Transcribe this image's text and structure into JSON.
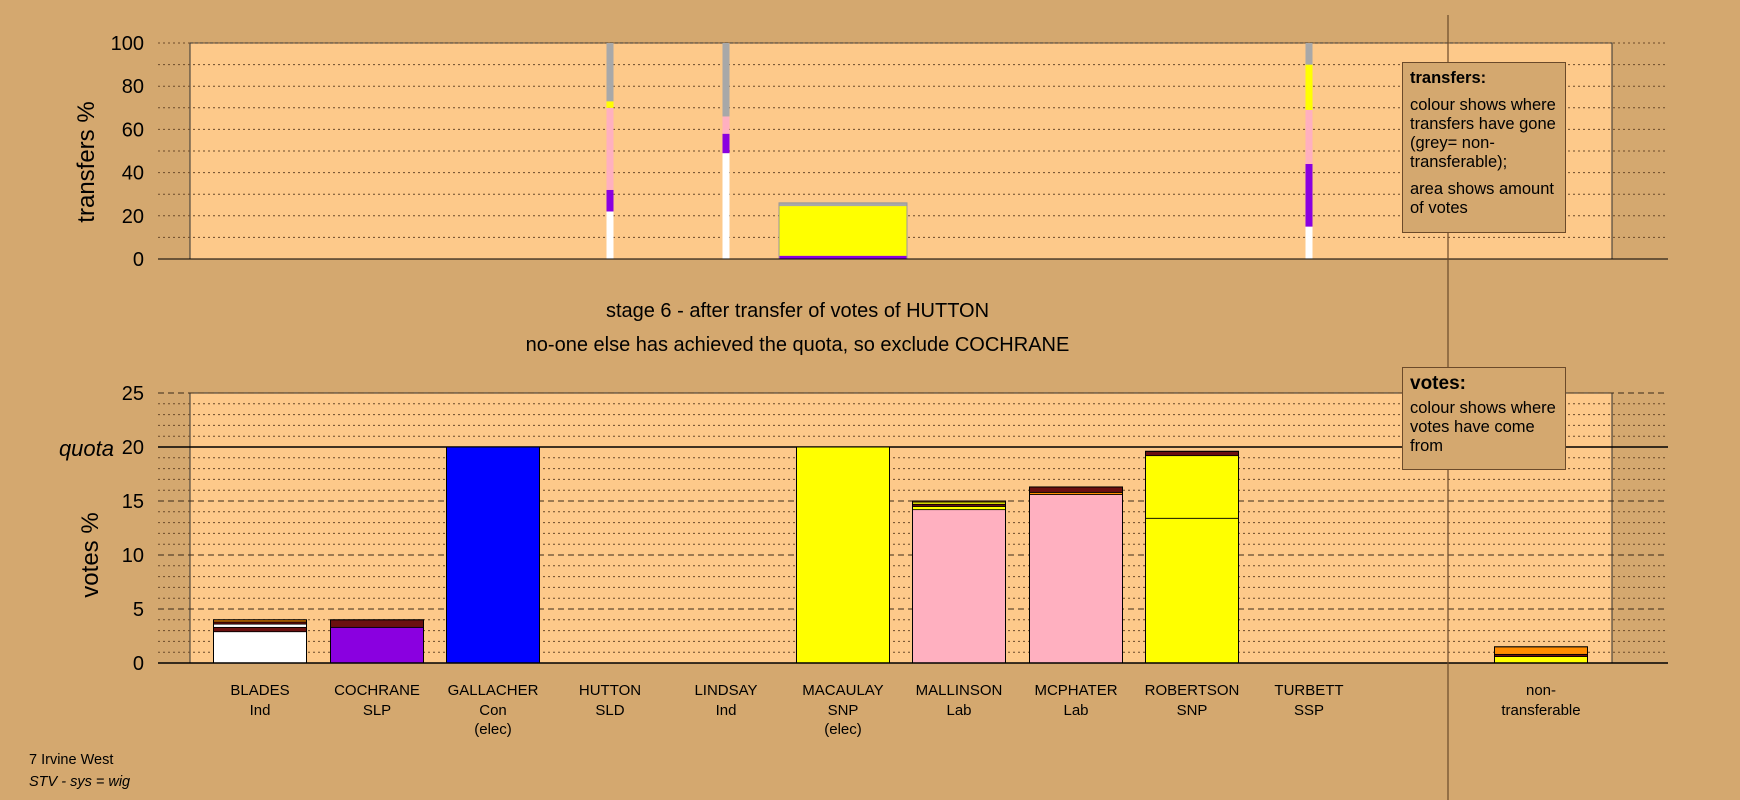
{
  "colors": {
    "background": "#d4a86f",
    "panel": "#fdc98a",
    "Ind": "#ffffff",
    "SLP": "#8a00e0",
    "Con": "#0000ff",
    "SNP": "#ffff00",
    "Lab": "#ffb0c0",
    "SSP": "#ff8c00",
    "SLD": "#ffa500",
    "other": "#6b1010",
    "non_transferable": "#a8a8a8"
  },
  "stage": {
    "title": "stage 6 - after transfer of votes of HUTTON",
    "subtitle": "no-one else has achieved the quota, so exclude COCHRANE"
  },
  "footer": {
    "constituency": "7 Irvine West",
    "system": "STV - sys = wig"
  },
  "legend": {
    "transfers_title": "transfers:",
    "transfers_text1": "colour shows where transfers have gone (grey= non-transferable);",
    "transfers_text2": "area shows amount of votes",
    "votes_title": "votes:",
    "votes_text": "colour shows where votes have come from"
  },
  "chart_data": [
    {
      "type": "bar",
      "name": "transfers",
      "ylabel": "transfers %",
      "ylim": [
        0,
        100
      ],
      "yticks": [
        0,
        20,
        40,
        60,
        80,
        100
      ],
      "grid": true,
      "columns": [
        {
          "candidate": "HUTTON",
          "width_share": 0.05,
          "segments": [
            {
              "party": "Ind",
              "value": 22
            },
            {
              "party": "SLP",
              "value": 10
            },
            {
              "party": "Lab",
              "value": 38
            },
            {
              "party": "SNP",
              "value": 3
            },
            {
              "party": "non_transferable",
              "value": 27
            }
          ]
        },
        {
          "candidate": "LINDSAY",
          "width_share": 0.05,
          "segments": [
            {
              "party": "Ind",
              "value": 49
            },
            {
              "party": "SLP",
              "value": 9
            },
            {
              "party": "Lab",
              "value": 8
            },
            {
              "party": "non_transferable",
              "value": 34
            }
          ]
        },
        {
          "candidate": "MACAULAY",
          "width_share": 1,
          "segments": [
            {
              "party": "SLP",
              "value": 1.5
            },
            {
              "party": "SNP",
              "value": 23
            },
            {
              "party": "non_transferable",
              "value": 1.5
            }
          ]
        },
        {
          "candidate": "TURBETT",
          "width_share": 0.05,
          "segments": [
            {
              "party": "Ind",
              "value": 15
            },
            {
              "party": "SLP",
              "value": 29
            },
            {
              "party": "Lab",
              "value": 25
            },
            {
              "party": "SNP",
              "value": 21
            },
            {
              "party": "non_transferable",
              "value": 10
            }
          ]
        }
      ]
    },
    {
      "type": "bar",
      "name": "votes",
      "ylabel": "votes %",
      "ylim": [
        0,
        25
      ],
      "yticks": [
        0,
        5,
        10,
        15,
        20,
        25
      ],
      "quota": 20,
      "quota_label": "quota",
      "grid": true,
      "categories": [
        "BLADES",
        "COCHRANE",
        "GALLACHER",
        "HUTTON",
        "LINDSAY",
        "MACAULAY",
        "MALLINSON",
        "MCPHATER",
        "ROBERTSON",
        "TURBETT",
        "non-transferable"
      ],
      "candidates": [
        {
          "name": "BLADES",
          "party": "Ind",
          "note": "",
          "total": 4.0,
          "segments": [
            {
              "party": "Ind",
              "value": 2.9
            },
            {
              "party": "other",
              "value": 0.4
            },
            {
              "party": "Ind",
              "value": 0.3
            },
            {
              "party": "other",
              "value": 0.2
            },
            {
              "party": "SSP",
              "value": 0.2
            }
          ]
        },
        {
          "name": "COCHRANE",
          "party": "SLP",
          "note": "",
          "total": 4.0,
          "segments": [
            {
              "party": "SLP",
              "value": 3.3
            },
            {
              "party": "other",
              "value": 0.7
            }
          ]
        },
        {
          "name": "GALLACHER",
          "party": "Con",
          "note": "(elec)",
          "total": 20.0,
          "segments": [
            {
              "party": "Con",
              "value": 20.0
            }
          ]
        },
        {
          "name": "HUTTON",
          "party": "SLD",
          "note": "",
          "total": 0,
          "segments": []
        },
        {
          "name": "LINDSAY",
          "party": "Ind",
          "note": "",
          "total": 0,
          "segments": []
        },
        {
          "name": "MACAULAY",
          "party": "SNP",
          "note": "(elec)",
          "total": 20.0,
          "segments": [
            {
              "party": "SNP",
              "value": 20.0
            }
          ]
        },
        {
          "name": "MALLINSON",
          "party": "Lab",
          "note": "",
          "total": 15.0,
          "segments": [
            {
              "party": "Lab",
              "value": 14.2
            },
            {
              "party": "SNP",
              "value": 0.3
            },
            {
              "party": "other",
              "value": 0.2
            },
            {
              "party": "SNP",
              "value": 0.2
            },
            {
              "party": "SSP",
              "value": 0.1
            }
          ]
        },
        {
          "name": "MCPHATER",
          "party": "Lab",
          "note": "",
          "total": 16.3,
          "segments": [
            {
              "party": "Lab",
              "value": 15.6
            },
            {
              "party": "SSP",
              "value": 0.2
            },
            {
              "party": "other",
              "value": 0.5
            }
          ]
        },
        {
          "name": "ROBERTSON",
          "party": "SNP",
          "note": "",
          "total": 19.6,
          "segments": [
            {
              "party": "SNP",
              "value": 13.4
            },
            {
              "party": "SNP",
              "value": 5.8
            },
            {
              "party": "other",
              "value": 0.4
            }
          ]
        },
        {
          "name": "TURBETT",
          "party": "SSP",
          "note": "",
          "total": 0,
          "segments": []
        }
      ],
      "non_transferable": {
        "label": "non-transferable",
        "total": 1.5,
        "segments": [
          {
            "party": "SNP",
            "value": 0.6
          },
          {
            "party": "other",
            "value": 0.2
          },
          {
            "party": "SSP",
            "value": 0.7
          }
        ]
      }
    }
  ]
}
